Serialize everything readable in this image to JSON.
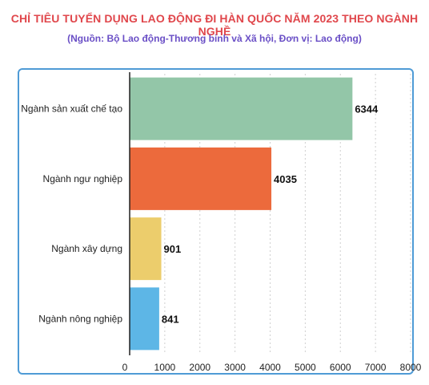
{
  "title": "CHỈ TIÊU TUYỂN DỤNG LAO ĐỘNG ĐI HÀN QUỐC NĂM 2023 THEO NGÀNH NGHỀ",
  "subtitle": "(Nguồn: Bộ Lao động-Thương binh và Xã hội, Đơn vị: Lao động)",
  "chart_data": {
    "type": "bar",
    "orientation": "horizontal",
    "categories": [
      "Ngành sản xuất chế tạo",
      "Ngành ngư nghiệp",
      "Ngành xây dựng",
      "Ngành nông nghiệp"
    ],
    "values": [
      6344,
      4035,
      901,
      841
    ],
    "colors": [
      "#93c6a8",
      "#ec6a3c",
      "#eccd6c",
      "#5db6e6"
    ],
    "xlim": [
      0,
      8000
    ],
    "xticks": [
      0,
      1000,
      2000,
      3000,
      4000,
      5000,
      6000,
      7000,
      8000
    ],
    "grid": "vertical dashed",
    "data_labels": true
  }
}
